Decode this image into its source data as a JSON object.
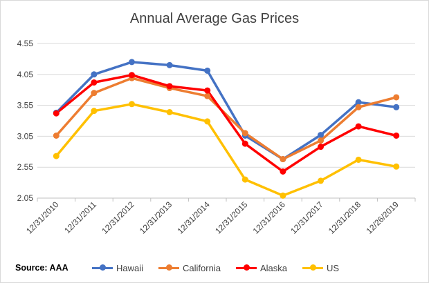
{
  "chart_data": {
    "type": "line",
    "title": "Annual Average Gas Prices",
    "xlabel": "",
    "ylabel": "",
    "categories": [
      "12/31/2010",
      "12/31/2011",
      "12/31/2012",
      "12/31/2013",
      "12/31/2014",
      "12/31/2015",
      "12/31/2016",
      "12/31/2017",
      "12/31/2018",
      "12/26/2019"
    ],
    "y_ticks": [
      "2.05",
      "2.55",
      "3.05",
      "3.55",
      "4.05",
      "4.55"
    ],
    "ylim": [
      2.05,
      4.55
    ],
    "grid": true,
    "legend_position": "bottom",
    "series": [
      {
        "name": "Hawaii",
        "color": "#4472c4",
        "values": [
          3.43,
          4.05,
          4.25,
          4.2,
          4.11,
          3.06,
          2.68,
          3.07,
          3.6,
          3.52
        ]
      },
      {
        "name": "California",
        "color": "#ed7d31",
        "values": [
          3.06,
          3.75,
          3.99,
          3.83,
          3.7,
          3.1,
          2.68,
          2.98,
          3.52,
          3.68
        ]
      },
      {
        "name": "Alaska",
        "color": "#ff0000",
        "values": [
          3.42,
          3.92,
          4.04,
          3.86,
          3.79,
          2.93,
          2.48,
          2.88,
          3.21,
          3.06
        ]
      },
      {
        "name": "US",
        "color": "#ffc000",
        "values": [
          2.73,
          3.46,
          3.57,
          3.44,
          3.29,
          2.35,
          2.09,
          2.33,
          2.67,
          2.56
        ]
      }
    ]
  },
  "source_label": "Source: AAA"
}
